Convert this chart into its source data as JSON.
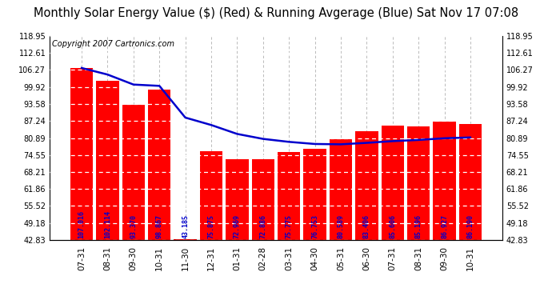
{
  "title": "Monthly Solar Energy Value ($) (Red) & Running Avgerage (Blue) Sat Nov 17 07:08",
  "copyright": "Copyright 2007 Cartronics.com",
  "categories": [
    "07-31",
    "08-31",
    "09-30",
    "10-31",
    "11-30",
    "12-31",
    "01-31",
    "02-28",
    "03-31",
    "04-30",
    "05-31",
    "06-30",
    "07-31",
    "08-31",
    "09-30",
    "10-31"
  ],
  "bar_values": [
    107.016,
    102.114,
    93.37,
    98.867,
    43.185,
    75.875,
    72.969,
    72.886,
    75.775,
    76.753,
    80.589,
    83.406,
    85.606,
    85.196,
    86.927,
    86.19
  ],
  "running_avg": [
    107.016,
    104.565,
    100.833,
    100.342,
    88.51,
    85.738,
    82.411,
    80.56,
    79.448,
    78.662,
    78.534,
    79.085,
    79.719,
    80.167,
    80.796,
    81.1
  ],
  "bar_color": "#ff0000",
  "line_color": "#0000cc",
  "label_color": "#0000cc",
  "bg_color": "#ffffff",
  "grid_color_h": "#ffffff",
  "grid_color_v": "#b0b0b0",
  "ylim_min": 42.83,
  "ylim_max": 118.95,
  "yticks": [
    42.83,
    49.18,
    55.52,
    61.86,
    68.21,
    74.55,
    80.89,
    87.24,
    93.58,
    99.92,
    106.27,
    112.61,
    118.95
  ],
  "title_fontsize": 10.5,
  "copyright_fontsize": 7,
  "label_fontsize": 6.0
}
